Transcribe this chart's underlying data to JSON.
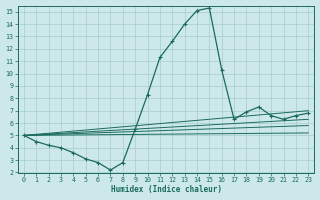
{
  "xlabel": "Humidex (Indice chaleur)",
  "bg_color": "#cde8ea",
  "grid_color": "#a8cccc",
  "line_color": "#1a6b5a",
  "xlim": [
    -0.5,
    23.5
  ],
  "ylim": [
    2,
    15.5
  ],
  "xticks": [
    0,
    1,
    2,
    3,
    4,
    5,
    6,
    7,
    8,
    9,
    10,
    11,
    12,
    13,
    14,
    15,
    16,
    17,
    18,
    19,
    20,
    21,
    22,
    23
  ],
  "yticks": [
    2,
    3,
    4,
    5,
    6,
    7,
    8,
    9,
    10,
    11,
    12,
    13,
    14,
    15
  ],
  "main_curve_x": [
    0,
    1,
    2,
    3,
    4,
    5,
    6,
    7,
    8,
    9,
    10,
    11,
    12,
    13,
    14,
    15,
    16,
    17,
    18,
    19,
    20,
    21,
    22,
    23
  ],
  "main_curve_y": [
    5.0,
    4.5,
    4.2,
    4.0,
    3.6,
    3.1,
    2.8,
    2.2,
    2.8,
    5.5,
    8.3,
    11.3,
    12.6,
    14.0,
    15.1,
    15.3,
    10.3,
    6.3,
    6.9,
    7.3,
    6.6,
    6.3,
    6.6,
    6.8
  ],
  "ref_lines": [
    {
      "x": [
        0,
        23
      ],
      "y": [
        5.0,
        5.2
      ]
    },
    {
      "x": [
        0,
        23
      ],
      "y": [
        5.0,
        5.8
      ]
    },
    {
      "x": [
        0,
        23
      ],
      "y": [
        5.0,
        6.3
      ]
    },
    {
      "x": [
        0,
        23
      ],
      "y": [
        5.0,
        7.0
      ]
    }
  ]
}
